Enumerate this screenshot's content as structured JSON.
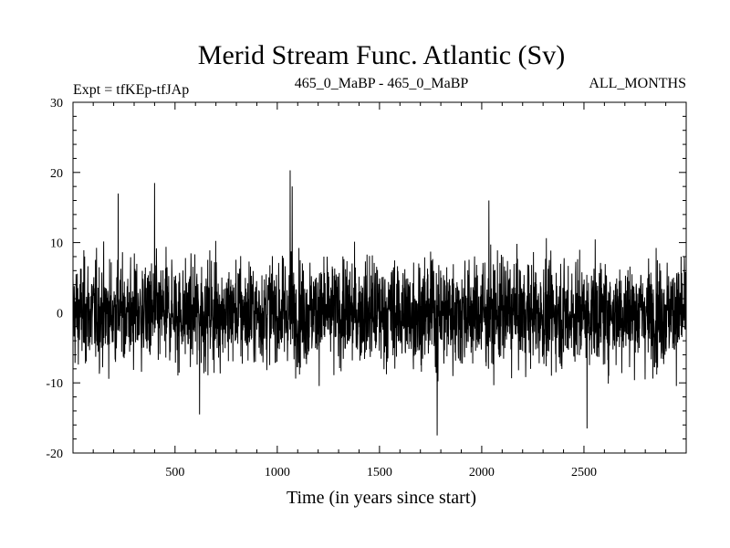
{
  "chart_data": {
    "type": "line",
    "title": "Merid Stream Func. Atlantic (Sv)",
    "subtitle_left": "Expt = tfKEp-tfJAp",
    "subtitle_center": "465_0_MaBP - 465_0_MaBP",
    "subtitle_right": "ALL_MONTHS",
    "xlabel": "Time (in years since start)",
    "ylabel": "",
    "xlim": [
      1,
      3000
    ],
    "ylim": [
      -20,
      30
    ],
    "x_ticks": [
      500,
      1000,
      1500,
      2000,
      2500
    ],
    "x_tick_labels": [
      "500",
      "1000",
      "1500",
      "2000",
      "2500"
    ],
    "y_ticks": [
      -20,
      -10,
      0,
      10,
      20,
      30
    ],
    "y_tick_labels": [
      "-20",
      "-10",
      "0",
      "10",
      "20",
      "30"
    ],
    "grid": false,
    "series": [
      {
        "color": "#000000",
        "style": "noisy annual time series, roughly 3000 values; typical range -12 to 12 around mean ~0",
        "x_start": 1,
        "x_step": 1,
        "mean": 0,
        "peaks": [
          {
            "x": 222,
            "y": 17
          },
          {
            "x": 400,
            "y": 18.5
          },
          {
            "x": 1063,
            "y": 20.3
          },
          {
            "x": 1073,
            "y": 18
          },
          {
            "x": 1782,
            "y": -17.5
          },
          {
            "x": 2035,
            "y": 16
          },
          {
            "x": 2515,
            "y": -16.5
          },
          {
            "x": 620,
            "y": -14.5
          }
        ]
      }
    ]
  }
}
